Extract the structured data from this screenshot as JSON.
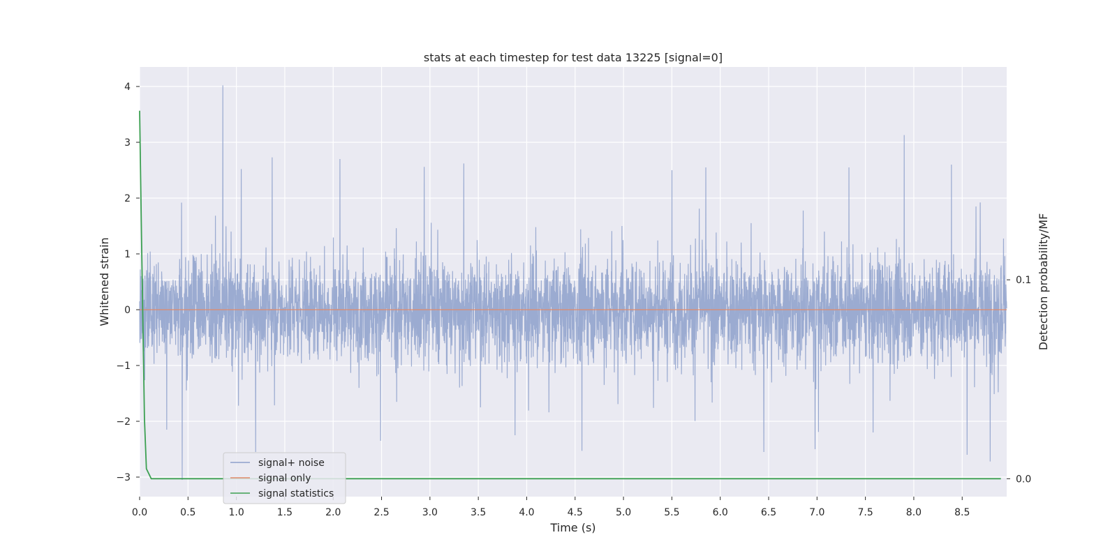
{
  "chart_data": {
    "type": "line",
    "title": "stats at each timestep for test data 13225 [signal=0]",
    "xlabel": "Time (s)",
    "ylabel": "Whitened strain",
    "y2label": "Detection probability/MF",
    "xlim": [
      0.0,
      8.96
    ],
    "ylim": [
      -3.35,
      4.35
    ],
    "y2lim": [
      -0.009,
      0.207
    ],
    "x_ticks": [
      0.0,
      0.5,
      1.0,
      1.5,
      2.0,
      2.5,
      3.0,
      3.5,
      4.0,
      4.5,
      5.0,
      5.5,
      6.0,
      6.5,
      7.0,
      7.5,
      8.0,
      8.5
    ],
    "x_tick_labels": [
      "0.0",
      "0.5",
      "1.0",
      "1.5",
      "2.0",
      "2.5",
      "3.0",
      "3.5",
      "4.0",
      "4.5",
      "5.0",
      "5.5",
      "6.0",
      "6.5",
      "7.0",
      "7.5",
      "8.0",
      "8.5"
    ],
    "y_ticks": [
      -3,
      -2,
      -1,
      0,
      1,
      2,
      3,
      4
    ],
    "y_tick_labels": [
      "−3",
      "−2",
      "−1",
      "0",
      "1",
      "2",
      "3",
      "4"
    ],
    "y2_ticks": [
      0.0,
      0.1
    ],
    "y2_tick_labels": [
      "0.0",
      "0.1"
    ],
    "grid": true,
    "legend_position": "lower-left",
    "series": [
      {
        "name": "signal+ noise",
        "axis": "left",
        "color": "#8da0cb",
        "kind": "noise",
        "duration": 8.96,
        "samples": 4096,
        "envelope": [
          -1.5,
          1.5
        ],
        "spikes": [
          {
            "x": 0.86,
            "y": 4.02
          },
          {
            "x": 0.44,
            "y": -3.05
          },
          {
            "x": 7.9,
            "y": 3.13
          },
          {
            "x": 1.37,
            "y": 2.73
          },
          {
            "x": 2.07,
            "y": 2.7
          },
          {
            "x": 3.35,
            "y": 2.62
          },
          {
            "x": 8.39,
            "y": 2.6
          },
          {
            "x": 8.79,
            "y": -2.72
          },
          {
            "x": 1.05,
            "y": 2.52
          },
          {
            "x": 2.94,
            "y": 2.56
          },
          {
            "x": 5.5,
            "y": 2.5
          },
          {
            "x": 5.85,
            "y": 2.55
          },
          {
            "x": 7.33,
            "y": 2.55
          },
          {
            "x": 6.45,
            "y": -2.55
          },
          {
            "x": 4.57,
            "y": -2.53
          },
          {
            "x": 6.98,
            "y": -2.5
          },
          {
            "x": 1.2,
            "y": -2.55
          },
          {
            "x": 8.55,
            "y": -2.6
          },
          {
            "x": 0.28,
            "y": -2.15
          },
          {
            "x": 2.49,
            "y": -2.35
          },
          {
            "x": 3.88,
            "y": -2.25
          },
          {
            "x": 7.58,
            "y": -2.2
          }
        ]
      },
      {
        "name": "signal only",
        "axis": "left",
        "color": "#e0896a",
        "kind": "line",
        "x": [
          0.0,
          8.96
        ],
        "y": [
          0.0,
          0.0
        ]
      },
      {
        "name": "signal statistics",
        "axis": "right",
        "color": "#3ca052",
        "kind": "line",
        "x": [
          0.0,
          0.02,
          0.05,
          0.07,
          0.12,
          0.5,
          1.0,
          2.0,
          3.0,
          4.0,
          5.0,
          6.0,
          7.0,
          8.0,
          8.9
        ],
        "y": [
          0.185,
          0.12,
          0.03,
          0.005,
          0.0,
          0.0,
          0.0,
          0.0,
          0.0,
          0.0,
          0.0,
          0.0,
          0.0,
          0.0,
          0.0
        ]
      }
    ]
  },
  "horizontal_line_y2": 0.1
}
